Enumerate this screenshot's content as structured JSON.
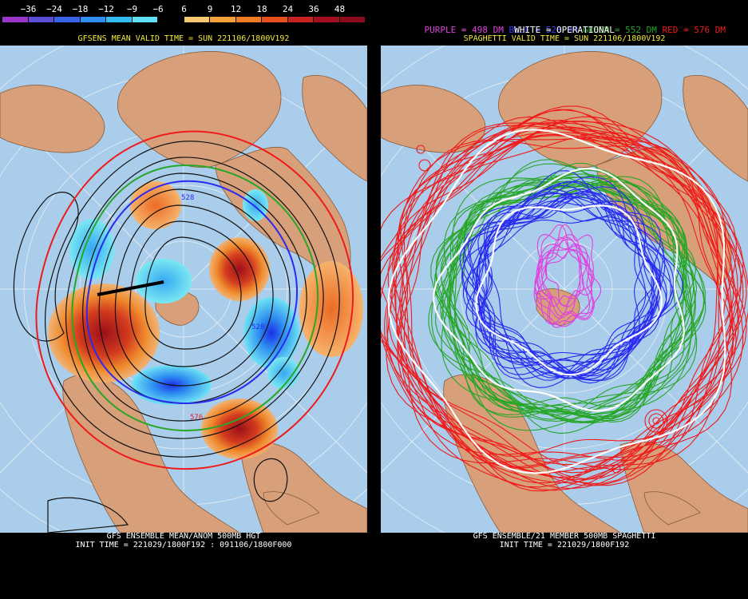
{
  "left": {
    "scale_labels": [
      "−36",
      "−24",
      "−18",
      "−12",
      "−9",
      "−6",
      "6",
      "9",
      "12",
      "18",
      "24",
      "36",
      "48"
    ],
    "scale_colors": [
      "#9b34c8",
      "#5a4fd6",
      "#3a64e6",
      "#2f8ff2",
      "#34bdf5",
      "#5fe0f5",
      "#000000",
      "#f5c76f",
      "#f5a13a",
      "#f07b25",
      "#e6501d",
      "#c9231e",
      "#a30f1e",
      "#8a0c1c"
    ],
    "title": "GFSENS MEAN VALID TIME = SUN 221106/1800V192",
    "contour_label_528": "528",
    "contour_label_528_b": "528",
    "contour_label_576": "576",
    "footer_line1": "GFS ENSEMBLE MEAN/ANOM 500MB HGT",
    "footer_line2": "INIT TIME = 221029/1800F192 : 091106/1800F000"
  },
  "right": {
    "legend_purple": "PURPLE = 498 DM",
    "legend_blue": "BLUE = 528 DM",
    "legend_green": "GREEN = 552 DM",
    "legend_red": "RED = 576 DM",
    "legend_white": "WHITE = OPERATIONAL",
    "title": "SPAGHETTI VALID TIME = SUN 221106/1800V192",
    "footer_line1": "GFS ENSEMBLE/21 MEMBER 500MB SPAGHETTI",
    "footer_line2": "INIT TIME = 221029/1800F192"
  },
  "colors": {
    "ocean": "#a9cdeb",
    "land": "#d7a07a",
    "title_yellow": "#f2e93a",
    "purple": "#e040e0",
    "blue": "#2a2af0",
    "green": "#27a627",
    "red": "#f01a1a",
    "white": "#ffffff"
  }
}
